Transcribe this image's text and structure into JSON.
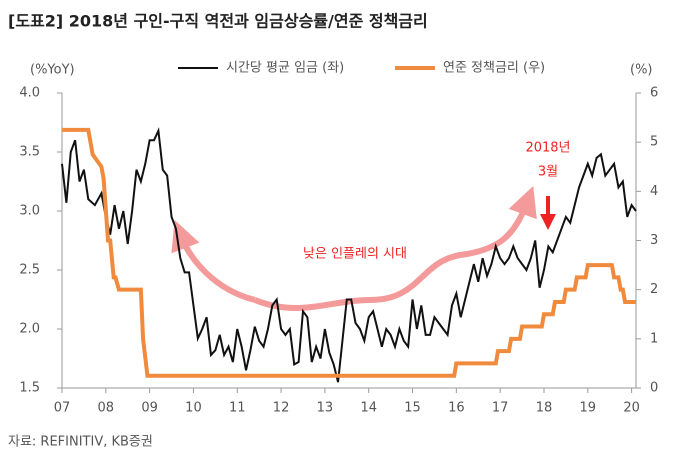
{
  "chart_data": {
    "type": "line",
    "title": "[도표2] 2018년 구인-구직 역전과 임금상승률/연준 정책금리",
    "y_label": "(%YoY)",
    "y2_label": "(%)",
    "source": "자료: REFINITIV, KB증권",
    "annotations": [
      "낮은 인플레의 시대",
      "2018년",
      "3월"
    ],
    "xlim": [
      2007,
      2020.1
    ],
    "xticks": [
      {
        "value": 2007,
        "label": "07"
      },
      {
        "value": 2008,
        "label": "08"
      },
      {
        "value": 2009,
        "label": "09"
      },
      {
        "value": 2010,
        "label": "10"
      },
      {
        "value": 2011,
        "label": "11"
      },
      {
        "value": 2012,
        "label": "12"
      },
      {
        "value": 2013,
        "label": "13"
      },
      {
        "value": 2014,
        "label": "14"
      },
      {
        "value": 2015,
        "label": "15"
      },
      {
        "value": 2016,
        "label": "16"
      },
      {
        "value": 2017,
        "label": "17"
      },
      {
        "value": 2018,
        "label": "18"
      },
      {
        "value": 2019,
        "label": "19"
      },
      {
        "value": 2020,
        "label": "20"
      }
    ],
    "ylim": [
      1.5,
      4.0
    ],
    "yticks": [
      {
        "value": 1.5,
        "label": "1.5"
      },
      {
        "value": 2,
        "label": "2.0"
      },
      {
        "value": 2.5,
        "label": "2.5"
      },
      {
        "value": 3,
        "label": "3.0"
      },
      {
        "value": 3.5,
        "label": "3.5"
      },
      {
        "value": 4,
        "label": "4.0"
      }
    ],
    "y2lim": [
      0,
      6
    ],
    "y2ticks": [
      0,
      1,
      2,
      3,
      4,
      5,
      6
    ],
    "series": [
      {
        "name": "시간당 평균 임금 (좌)",
        "color": "#111111",
        "x": [
          2007.0,
          2007.1,
          2007.2,
          2007.3,
          2007.4,
          2007.5,
          2007.6,
          2007.75,
          2007.9,
          2008.0,
          2008.1,
          2008.2,
          2008.3,
          2008.4,
          2008.5,
          2008.6,
          2008.7,
          2008.8,
          2008.9,
          2009.0,
          2009.1,
          2009.2,
          2009.3,
          2009.4,
          2009.5,
          2009.6,
          2009.7,
          2009.8,
          2009.9,
          2010.0,
          2010.1,
          2010.2,
          2010.3,
          2010.4,
          2010.5,
          2010.6,
          2010.7,
          2010.8,
          2010.9,
          2011.0,
          2011.1,
          2011.2,
          2011.3,
          2011.4,
          2011.5,
          2011.6,
          2011.7,
          2011.8,
          2011.9,
          2012.0,
          2012.1,
          2012.2,
          2012.3,
          2012.4,
          2012.5,
          2012.6,
          2012.7,
          2012.8,
          2012.9,
          2013.0,
          2013.1,
          2013.2,
          2013.3,
          2013.4,
          2013.5,
          2013.6,
          2013.7,
          2013.8,
          2013.9,
          2014.0,
          2014.1,
          2014.2,
          2014.3,
          2014.4,
          2014.5,
          2014.6,
          2014.7,
          2014.8,
          2014.9,
          2015.0,
          2015.1,
          2015.2,
          2015.3,
          2015.4,
          2015.5,
          2015.6,
          2015.7,
          2015.8,
          2015.9,
          2016.0,
          2016.1,
          2016.2,
          2016.3,
          2016.4,
          2016.5,
          2016.6,
          2016.7,
          2016.8,
          2016.9,
          2017.0,
          2017.1,
          2017.2,
          2017.3,
          2017.4,
          2017.5,
          2017.6,
          2017.7,
          2017.8,
          2017.9,
          2018.0,
          2018.1,
          2018.2,
          2018.3,
          2018.4,
          2018.5,
          2018.6,
          2018.7,
          2018.8,
          2018.9,
          2019.0,
          2019.1,
          2019.2,
          2019.3,
          2019.4,
          2019.5,
          2019.6,
          2019.7,
          2019.8,
          2019.9,
          2020.0,
          2020.1
        ],
        "values": [
          3.4,
          3.07,
          3.5,
          3.6,
          3.25,
          3.35,
          3.1,
          3.05,
          3.15,
          2.95,
          2.8,
          3.05,
          2.85,
          3.0,
          2.72,
          3.0,
          3.35,
          3.25,
          3.4,
          3.6,
          3.6,
          3.68,
          3.35,
          3.3,
          2.95,
          2.85,
          2.6,
          2.48,
          2.48,
          2.2,
          1.92,
          2.0,
          2.1,
          1.78,
          1.82,
          1.95,
          1.78,
          1.85,
          1.72,
          2.0,
          1.85,
          1.65,
          1.82,
          2.02,
          1.9,
          1.85,
          2.0,
          2.2,
          2.25,
          2.0,
          1.95,
          2.0,
          1.7,
          1.72,
          2.15,
          2.1,
          1.72,
          1.85,
          1.75,
          2.0,
          1.8,
          1.7,
          1.55,
          1.9,
          2.25,
          2.25,
          2.05,
          2.0,
          1.9,
          2.1,
          2.15,
          2.0,
          1.85,
          2.0,
          1.95,
          1.85,
          2.0,
          1.9,
          1.85,
          2.25,
          2.0,
          2.2,
          1.95,
          1.95,
          2.1,
          2.05,
          2.0,
          1.95,
          2.2,
          2.3,
          2.1,
          2.25,
          2.4,
          2.55,
          2.4,
          2.6,
          2.45,
          2.55,
          2.7,
          2.6,
          2.55,
          2.6,
          2.7,
          2.6,
          2.55,
          2.5,
          2.6,
          2.75,
          2.35,
          2.5,
          2.7,
          2.65,
          2.75,
          2.85,
          2.95,
          2.9,
          3.05,
          3.2,
          3.3,
          3.4,
          3.3,
          3.45,
          3.48,
          3.3,
          3.35,
          3.4,
          3.2,
          3.25,
          2.95,
          3.05,
          3.0
        ]
      },
      {
        "name": "연준 정책금리 (우)",
        "color": "#f08a3c",
        "axis": "y2",
        "x": [
          2007.0,
          2007.6,
          2007.7,
          2007.9,
          2007.95,
          2008.05,
          2008.1,
          2008.18,
          2008.22,
          2008.3,
          2008.8,
          2008.85,
          2008.95,
          2015.95,
          2016.0,
          2016.9,
          2016.95,
          2017.2,
          2017.25,
          2017.45,
          2017.5,
          2017.95,
          2018.0,
          2018.2,
          2018.25,
          2018.45,
          2018.5,
          2018.7,
          2018.75,
          2018.95,
          2019.0,
          2019.55,
          2019.6,
          2019.7,
          2019.75,
          2019.8,
          2019.85,
          2020.1
        ],
        "values": [
          5.25,
          5.25,
          4.75,
          4.5,
          4.25,
          3.0,
          3.0,
          2.25,
          2.25,
          2.0,
          2.0,
          1.0,
          0.25,
          0.25,
          0.5,
          0.5,
          0.75,
          0.75,
          1.0,
          1.0,
          1.25,
          1.25,
          1.5,
          1.5,
          1.75,
          1.75,
          2.0,
          2.0,
          2.25,
          2.25,
          2.5,
          2.5,
          2.25,
          2.25,
          2.0,
          2.0,
          1.75,
          1.75
        ]
      }
    ]
  }
}
